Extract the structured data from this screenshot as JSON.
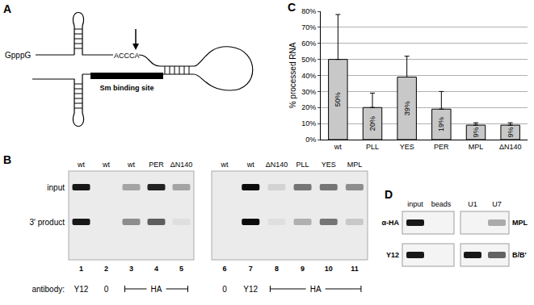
{
  "chart_data": {
    "type": "bar",
    "label": "C",
    "categories": [
      "wt",
      "PLL",
      "YES",
      "PER",
      "MPL",
      "ΔN140"
    ],
    "values": [
      50,
      20,
      39,
      19,
      9,
      9
    ],
    "value_labels": [
      "50%",
      "20%",
      "39%",
      "19%",
      "9%",
      "9%"
    ],
    "errors": [
      28,
      9,
      13,
      11,
      1.5,
      1.5
    ],
    "y_label": "% processed RNA",
    "ylim": [
      0,
      80
    ],
    "yticks": [
      {
        "value": 0,
        "label": "0%"
      },
      {
        "value": 10,
        "label": "10%"
      },
      {
        "value": 20,
        "label": "20%"
      },
      {
        "value": 30,
        "label": "30%"
      },
      {
        "value": 40,
        "label": "40%"
      },
      {
        "value": 50,
        "label": "50%"
      },
      {
        "value": 60,
        "label": "60%"
      },
      {
        "value": 70,
        "label": "70%"
      },
      {
        "value": 80,
        "label": "80%"
      }
    ],
    "color": "#c8c8c8",
    "grid": true,
    "data_labels": true
  },
  "diagram": {
    "label": "A",
    "five_prime": "GpppG",
    "cleavage_site": "ACCCA",
    "element": "Sm binding site"
  },
  "gels": {
    "label": "B",
    "row_labels": {
      "input": "input",
      "product": "3' product"
    },
    "antibody_title": "antibody:",
    "gels": [
      {
        "lanes": [
          {
            "number": 1,
            "name": "wt",
            "input": 0.9,
            "product": 0.9
          },
          {
            "number": 2,
            "name": "wt",
            "input": 0,
            "product": 0
          },
          {
            "number": 3,
            "name": "wt",
            "input": 0.3,
            "product": 0.4
          },
          {
            "number": 4,
            "name": "PER",
            "input": 0.85,
            "product": 0.6
          },
          {
            "number": 5,
            "name": "ΔN140",
            "input": 0.3,
            "product": 0.05
          }
        ],
        "antibodies": [
          {
            "label": "Y12",
            "from": 1,
            "to": 1
          },
          {
            "label": "0",
            "from": 2,
            "to": 2
          },
          {
            "label": "HA",
            "from": 3,
            "to": 5
          }
        ]
      },
      {
        "lanes": [
          {
            "number": 6,
            "name": "wt",
            "input": 0,
            "product": 0
          },
          {
            "number": 7,
            "name": "wt",
            "input": 0.95,
            "product": 0.95
          },
          {
            "number": 8,
            "name": "ΔN140",
            "input": 0.1,
            "product": 0.05
          },
          {
            "number": 9,
            "name": "PLL",
            "input": 0.5,
            "product": 0.25
          },
          {
            "number": 10,
            "name": "YES",
            "input": 0.5,
            "product": 0.5
          },
          {
            "number": 11,
            "name": "MPL",
            "input": 0.4,
            "product": 0.15
          }
        ],
        "antibodies": [
          {
            "label": "0",
            "from": 6,
            "to": 6
          },
          {
            "label": "Y12",
            "from": 7,
            "to": 7
          },
          {
            "label": "HA",
            "from": 8,
            "to": 11
          }
        ]
      }
    ]
  },
  "blot": {
    "label": "D",
    "columns": [
      "input",
      "beads",
      "U1",
      "U7"
    ],
    "rows": [
      {
        "antibody": "α-HA",
        "protein": "MPL",
        "bands": [
          0.9,
          0,
          0,
          0.3
        ]
      },
      {
        "antibody": "Y12",
        "protein": "B/B'",
        "bands": [
          0.9,
          0,
          0.9,
          0.6
        ]
      }
    ]
  }
}
